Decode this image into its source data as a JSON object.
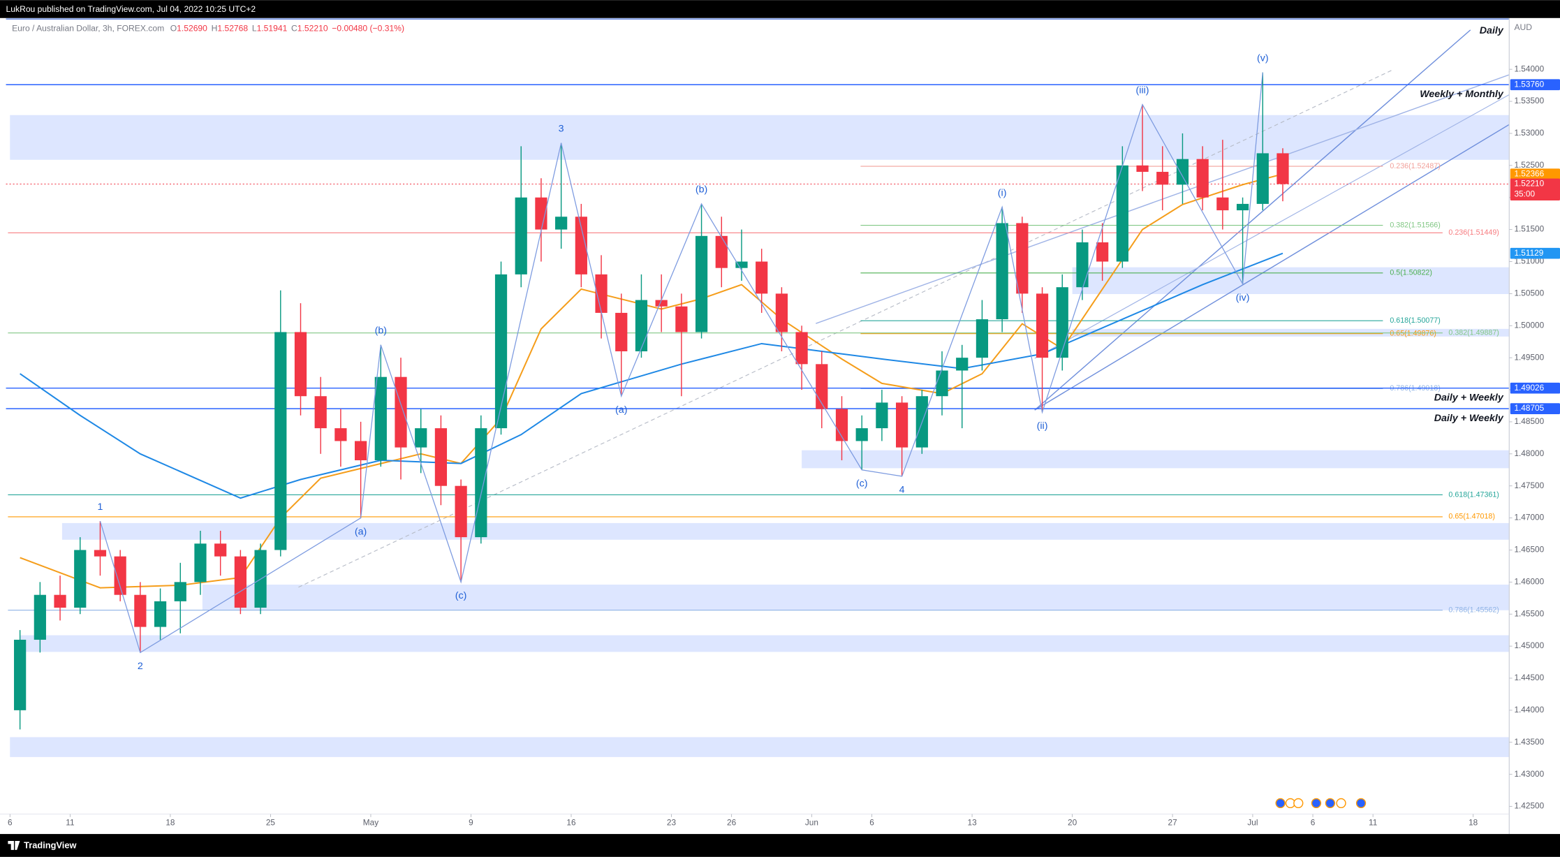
{
  "header": {
    "publisher": "LukRou published on TradingView.com, Jul 04, 2022 10:25 UTC+2",
    "symbol": "Euro / Australian Dollar, 3h, FOREX.com",
    "ohlc": [
      {
        "key": "O",
        "value": "1.52690"
      },
      {
        "key": "H",
        "value": "1.52768"
      },
      {
        "key": "L",
        "value": "1.51941"
      },
      {
        "key": "C",
        "value": "1.52210"
      }
    ],
    "change": "−0.00480 (−0.31%)"
  },
  "footer": {
    "brand": "TradingView"
  },
  "chart_data": {
    "type": "candlestick",
    "currency": "AUD",
    "x": [
      0,
      1,
      2,
      3,
      4,
      5,
      6,
      7,
      8,
      9,
      10,
      11,
      12,
      13,
      14,
      15,
      16,
      17,
      18,
      19,
      20,
      21,
      22,
      23,
      24,
      25,
      26,
      27,
      28,
      29,
      30,
      31,
      32,
      33,
      34,
      35,
      36,
      37,
      38,
      39,
      40,
      41,
      42,
      43,
      44,
      45,
      46,
      47,
      48,
      49,
      50,
      51,
      52,
      53,
      54,
      55,
      56,
      57,
      58,
      59,
      60,
      61,
      62,
      63
    ],
    "open": [
      1.44,
      1.451,
      1.458,
      1.456,
      1.465,
      1.464,
      1.458,
      1.453,
      1.457,
      1.46,
      1.466,
      1.464,
      1.456,
      1.465,
      1.499,
      1.489,
      1.484,
      1.482,
      1.479,
      1.492,
      1.481,
      1.484,
      1.475,
      1.467,
      1.484,
      1.508,
      1.52,
      1.515,
      1.517,
      1.508,
      1.502,
      1.496,
      1.504,
      1.503,
      1.499,
      1.514,
      1.509,
      1.51,
      1.505,
      1.499,
      1.494,
      1.487,
      1.482,
      1.484,
      1.488,
      1.481,
      1.489,
      1.493,
      1.495,
      1.501,
      1.516,
      1.505,
      1.495,
      1.506,
      1.513,
      1.51,
      1.525,
      1.524,
      1.522,
      1.526,
      1.52,
      1.518,
      1.519,
      1.5269
    ],
    "high": [
      1.4525,
      1.46,
      1.461,
      1.467,
      1.4695,
      1.465,
      1.46,
      1.459,
      1.463,
      1.468,
      1.468,
      1.465,
      1.466,
      1.5055,
      1.5035,
      1.492,
      1.487,
      1.485,
      1.497,
      1.495,
      1.487,
      1.486,
      1.476,
      1.486,
      1.51,
      1.528,
      1.523,
      1.5285,
      1.519,
      1.511,
      1.505,
      1.508,
      1.508,
      1.505,
      1.519,
      1.517,
      1.515,
      1.512,
      1.506,
      1.5,
      1.496,
      1.489,
      1.486,
      1.49,
      1.489,
      1.49,
      1.496,
      1.497,
      1.504,
      1.5185,
      1.517,
      1.506,
      1.508,
      1.515,
      1.516,
      1.528,
      1.5345,
      1.528,
      1.53,
      1.528,
      1.529,
      1.52,
      1.5395,
      1.52768
    ],
    "low": [
      1.437,
      1.449,
      1.454,
      1.455,
      1.461,
      1.457,
      1.449,
      1.451,
      1.452,
      1.458,
      1.461,
      1.455,
      1.455,
      1.464,
      1.486,
      1.48,
      1.478,
      1.47,
      1.478,
      1.476,
      1.477,
      1.472,
      1.46,
      1.466,
      1.483,
      1.506,
      1.51,
      1.512,
      1.506,
      1.498,
      1.489,
      1.495,
      1.499,
      1.489,
      1.498,
      1.506,
      1.507,
      1.502,
      1.496,
      1.49,
      1.484,
      1.479,
      1.4775,
      1.482,
      1.4765,
      1.48,
      1.486,
      1.484,
      1.493,
      1.499,
      1.502,
      1.4865,
      1.493,
      1.504,
      1.507,
      1.509,
      1.521,
      1.518,
      1.519,
      1.518,
      1.515,
      1.5065,
      1.518,
      1.51941
    ],
    "close": [
      1.451,
      1.458,
      1.456,
      1.465,
      1.464,
      1.458,
      1.453,
      1.457,
      1.46,
      1.466,
      1.464,
      1.456,
      1.465,
      1.499,
      1.489,
      1.484,
      1.482,
      1.479,
      1.492,
      1.481,
      1.484,
      1.475,
      1.467,
      1.484,
      1.508,
      1.52,
      1.515,
      1.517,
      1.508,
      1.502,
      1.496,
      1.504,
      1.503,
      1.499,
      1.514,
      1.509,
      1.51,
      1.505,
      1.499,
      1.494,
      1.487,
      1.482,
      1.484,
      1.488,
      1.481,
      1.489,
      1.493,
      1.495,
      1.501,
      1.516,
      1.505,
      1.495,
      1.506,
      1.513,
      1.51,
      1.525,
      1.524,
      1.522,
      1.526,
      1.52,
      1.518,
      1.519,
      1.5269,
      1.5221
    ],
    "up_color": "#089981",
    "down_color": "#f23645",
    "xlim": [
      -0.2,
      74.8
    ],
    "xticks": [
      {
        "value": 0,
        "label": "6"
      },
      {
        "value": 3,
        "label": "11"
      },
      {
        "value": 8,
        "label": "18"
      },
      {
        "value": 13,
        "label": "25"
      },
      {
        "value": 18,
        "label": "May"
      },
      {
        "value": 23,
        "label": "9"
      },
      {
        "value": 28,
        "label": "16"
      },
      {
        "value": 33,
        "label": "23"
      },
      {
        "value": 36,
        "label": "26"
      },
      {
        "value": 40,
        "label": "Jun"
      },
      {
        "value": 43,
        "label": "6"
      },
      {
        "value": 48,
        "label": "13"
      },
      {
        "value": 53,
        "label": "20"
      },
      {
        "value": 58,
        "label": "27"
      },
      {
        "value": 62,
        "label": "Jul"
      },
      {
        "value": 65,
        "label": "6"
      },
      {
        "value": 68,
        "label": "11"
      },
      {
        "value": 73,
        "label": "18"
      }
    ],
    "ylim": [
      1.421,
      1.548
    ],
    "yticks": [
      {
        "value": 1.425,
        "label": "1.42500"
      },
      {
        "value": 1.43,
        "label": "1.43000"
      },
      {
        "value": 1.435,
        "label": "1.43500"
      },
      {
        "value": 1.44,
        "label": "1.44000"
      },
      {
        "value": 1.445,
        "label": "1.44500"
      },
      {
        "value": 1.45,
        "label": "1.45000"
      },
      {
        "value": 1.455,
        "label": "1.45500"
      },
      {
        "value": 1.46,
        "label": "1.46000"
      },
      {
        "value": 1.465,
        "label": "1.46500"
      },
      {
        "value": 1.47,
        "label": "1.47000"
      },
      {
        "value": 1.475,
        "label": "1.47500"
      },
      {
        "value": 1.48,
        "label": "1.48000"
      },
      {
        "value": 1.485,
        "label": "1.48500"
      },
      {
        "value": 1.49,
        "label": "1.49000"
      },
      {
        "value": 1.495,
        "label": "1.49500"
      },
      {
        "value": 1.5,
        "label": "1.50000"
      },
      {
        "value": 1.505,
        "label": "1.50500"
      },
      {
        "value": 1.51,
        "label": "1.51000"
      },
      {
        "value": 1.515,
        "label": "1.51500"
      },
      {
        "value": 1.52,
        "label": "1.52000"
      },
      {
        "value": 1.525,
        "label": "1.52500"
      },
      {
        "value": 1.53,
        "label": "1.53000"
      },
      {
        "value": 1.535,
        "label": "1.53500"
      },
      {
        "value": 1.54,
        "label": "1.54000"
      }
    ],
    "moving_averages": [
      {
        "color": "#f59d1a",
        "x": [
          0,
          4,
          8,
          11,
          13,
          15,
          20,
          22,
          24,
          26,
          28,
          32,
          34,
          36,
          38,
          41,
          43,
          46,
          48,
          50,
          52,
          54,
          56,
          58,
          61,
          63
        ],
        "values": [
          1.4638,
          1.4591,
          1.4595,
          1.4607,
          1.47,
          1.4762,
          1.48,
          1.4785,
          1.4855,
          1.4995,
          1.5057,
          1.5026,
          1.5042,
          1.5064,
          1.501,
          1.4948,
          1.491,
          1.4894,
          1.4925,
          1.5003,
          1.4964,
          1.5057,
          1.515,
          1.5189,
          1.522,
          1.52366
        ]
      },
      {
        "color": "#1e88e5",
        "x": [
          0,
          3,
          6,
          11,
          14,
          18,
          22,
          25,
          28,
          33,
          37,
          40,
          43,
          47,
          51,
          55,
          59,
          63
        ],
        "values": [
          1.4925,
          1.486,
          1.48,
          1.4731,
          1.476,
          1.479,
          1.4785,
          1.483,
          1.4894,
          1.494,
          1.4972,
          1.496,
          1.4948,
          1.4933,
          1.4956,
          1.501,
          1.5064,
          1.51129
        ]
      }
    ],
    "zones": [
      {
        "from": 1.52588,
        "to": 1.53286,
        "start": 0
      },
      {
        "from": 1.50493,
        "to": 1.50911,
        "start": 53
      },
      {
        "from": 1.4983,
        "to": 1.4995,
        "start": 53
      },
      {
        "from": 1.47776,
        "to": 1.48056,
        "start": 39.5
      },
      {
        "from": 1.4666,
        "to": 1.4692,
        "start": 2.6
      },
      {
        "from": 1.4556,
        "to": 1.4596,
        "start": 9.6
      },
      {
        "from": 1.4491,
        "to": 1.4517,
        "start": 0.5
      },
      {
        "from": 1.4327,
        "to": 1.4358,
        "start": 0
      }
    ],
    "zone_color": "#2962ff",
    "levels": [
      {
        "value": 1.5376,
        "label": "Weekly + Monthly"
      },
      {
        "value": 1.49026,
        "label": "Daily + Weekly"
      },
      {
        "value": 1.48705,
        "label": "Daily + Weekly"
      }
    ],
    "level_color": "#2962ff",
    "trendline_label": "Daily",
    "fib_right": [
      {
        "value": 1.52487,
        "label": "0.236(1.52487)",
        "color": "#f2a19b"
      },
      {
        "value": 1.51566,
        "label": "0.382(1.51566)",
        "color": "#81c784"
      },
      {
        "value": 1.50822,
        "label": "0.5(1.50822)",
        "color": "#4caf50"
      },
      {
        "value": 1.50077,
        "label": "0.618(1.50077)",
        "color": "#26a69a"
      },
      {
        "value": 1.49876,
        "label": "0.65(1.49876)",
        "color": "#ff9800"
      },
      {
        "value": 1.49018,
        "label": "0.786(1.49018)",
        "color": "#90b4e6"
      }
    ],
    "fib_left": [
      {
        "value": 1.51449,
        "label": "0.236(1.51449)",
        "color": "#f77c80"
      },
      {
        "value": 1.49887,
        "label": "0.382(1.49887)",
        "color": "#81c784"
      },
      {
        "value": 1.47361,
        "label": "0.618(1.47361)",
        "color": "#26a69a"
      },
      {
        "value": 1.47018,
        "label": "0.65(1.47018)",
        "color": "#ff9800"
      },
      {
        "value": 1.45562,
        "label": "0.786(1.45562)",
        "color": "#90b4e6"
      }
    ],
    "waves": [
      {
        "label": "1",
        "day": 4,
        "price": 1.4695,
        "pos": "above"
      },
      {
        "label": "2",
        "day": 6,
        "price": 1.449,
        "pos": "below"
      },
      {
        "label": "(a)",
        "day": 17,
        "price": 1.47,
        "pos": "below"
      },
      {
        "label": "(b)",
        "day": 18,
        "price": 1.497,
        "pos": "above"
      },
      {
        "label": "(c)",
        "day": 22,
        "price": 1.46,
        "pos": "below"
      },
      {
        "label": "3",
        "day": 27,
        "price": 1.5285,
        "pos": "above"
      },
      {
        "label": "(a)",
        "day": 30,
        "price": 1.489,
        "pos": "below"
      },
      {
        "label": "(b)",
        "day": 34,
        "price": 1.519,
        "pos": "above"
      },
      {
        "label": "(c)",
        "day": 42,
        "price": 1.4775,
        "pos": "below"
      },
      {
        "label": "4",
        "day": 44,
        "price": 1.4765,
        "pos": "below"
      },
      {
        "label": "(i)",
        "day": 49,
        "price": 1.5185,
        "pos": "above"
      },
      {
        "label": "(ii)",
        "day": 51,
        "price": 1.4865,
        "pos": "below"
      },
      {
        "label": "(iii)",
        "day": 56,
        "price": 1.5345,
        "pos": "above"
      },
      {
        "label": "(iv)",
        "day": 61,
        "price": 1.5065,
        "pos": "below"
      },
      {
        "label": "(v)",
        "day": 62,
        "price": 1.5395,
        "pos": "above"
      }
    ],
    "wave_color": "#1e5fd6",
    "price_tags": [
      {
        "value": 1.5376,
        "label": "1.53760",
        "color": "#2962ff"
      },
      {
        "value": 1.52366,
        "label": "1.52366",
        "color": "#ff9800"
      },
      {
        "value": 1.5221,
        "label": "1.52210",
        "sublabel": "35:00",
        "color": "#f23645"
      },
      {
        "value": 1.51129,
        "label": "1.51129",
        "color": "#2196f3"
      },
      {
        "value": 1.49026,
        "label": "1.49026",
        "color": "#2962ff"
      },
      {
        "value": 1.48705,
        "label": "1.48705",
        "color": "#2962ff"
      }
    ]
  }
}
